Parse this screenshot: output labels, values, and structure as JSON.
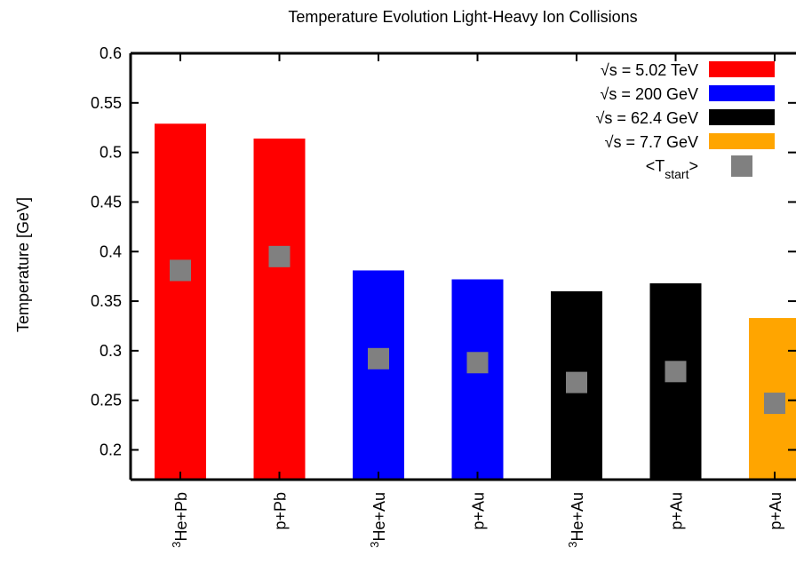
{
  "chart_data": {
    "type": "bar",
    "title": "Temperature Evolution Light-Heavy Ion Collisions",
    "xlabel": "",
    "ylabel": "Temperature [GeV]",
    "ylim": [
      0.17,
      0.6
    ],
    "yticks": [
      "0.2",
      "0.25",
      "0.3",
      "0.35",
      "0.4",
      "0.45",
      "0.5",
      "0.55",
      "0.6"
    ],
    "grid": false,
    "legend_position": "top-right",
    "categories": [
      "3He+Pb",
      "p+Pb",
      "3He+Au",
      "p+Au",
      "3He+Au",
      "p+Au",
      "p+Au"
    ],
    "bars": [
      {
        "category": "3He+Pb",
        "series": 0,
        "value": 0.529,
        "t_start": 0.381
      },
      {
        "category": "p+Pb",
        "series": 0,
        "value": 0.514,
        "t_start": 0.395
      },
      {
        "category": "3He+Au",
        "series": 1,
        "value": 0.381,
        "t_start": 0.292
      },
      {
        "category": "p+Au",
        "series": 1,
        "value": 0.372,
        "t_start": 0.288
      },
      {
        "category": "3He+Au",
        "series": 2,
        "value": 0.36,
        "t_start": 0.268
      },
      {
        "category": "p+Au",
        "series": 2,
        "value": 0.368,
        "t_start": 0.279
      },
      {
        "category": "p+Au",
        "series": 3,
        "value": 0.333,
        "t_start": 0.247
      }
    ],
    "series": [
      {
        "name": "√s = 5.02 TeV",
        "color": "#ff0000"
      },
      {
        "name": "√s = 200 GeV",
        "color": "#0000ff"
      },
      {
        "name": "√s = 62.4 GeV",
        "color": "#000000"
      },
      {
        "name": "√s = 7.7 GeV",
        "color": "#ffa500"
      }
    ],
    "marker_series": {
      "name": "<T",
      "subscript": "start",
      "suffix": ">",
      "color": "#808080"
    }
  }
}
